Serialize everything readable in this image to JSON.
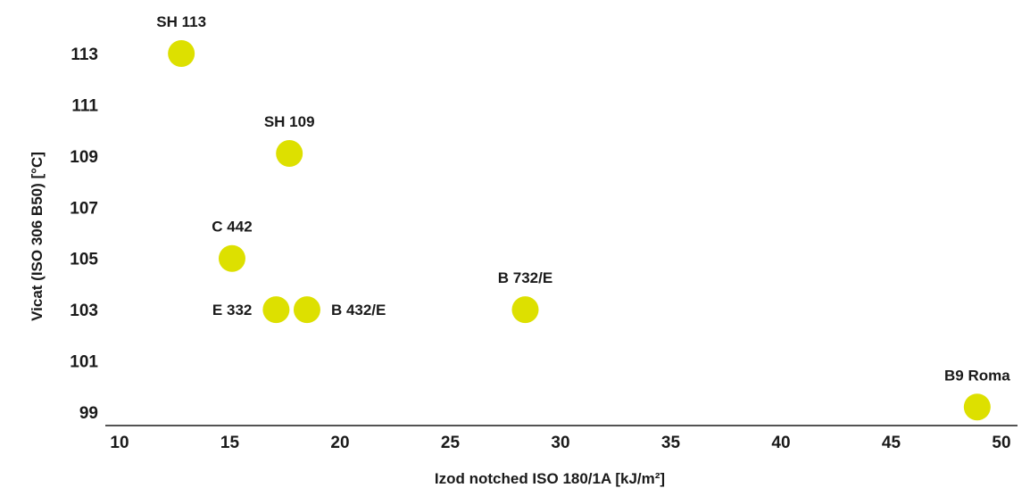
{
  "chart_data": {
    "type": "scatter",
    "title": "",
    "xlabel": "Izod notched ISO 180/1A [kJ/m²]",
    "ylabel": "Vicat (ISO 306 B50) [°C]",
    "xlim": [
      10,
      50
    ],
    "ylim": [
      99,
      113
    ],
    "xticks": [
      "10",
      "15",
      "20",
      "25",
      "30",
      "35",
      "40",
      "45",
      "50"
    ],
    "yticks": [
      "99",
      "101",
      "103",
      "105",
      "107",
      "109",
      "111",
      "113"
    ],
    "grid": false,
    "marker_color": "#dde000",
    "points": [
      {
        "label": "SH 113",
        "x": 12.8,
        "y": 113.0
      },
      {
        "label": "SH 109",
        "x": 17.7,
        "y": 109.1
      },
      {
        "label": "C 442",
        "x": 15.1,
        "y": 105.0
      },
      {
        "label": "E 332",
        "x": 17.1,
        "y": 103.0
      },
      {
        "label": "B 432/E",
        "x": 18.5,
        "y": 103.0
      },
      {
        "label": "B 732/E",
        "x": 28.4,
        "y": 103.0
      },
      {
        "label": "B9 Roma",
        "x": 48.9,
        "y": 99.2
      }
    ]
  }
}
